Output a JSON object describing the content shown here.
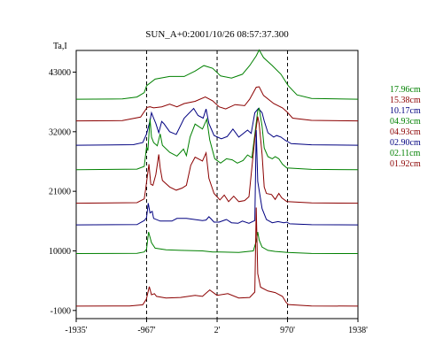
{
  "chart_data": {
    "type": "line",
    "title": "SUN_A+0:2001/10/26 08:57:37.300",
    "ylabel": "Ta,I",
    "xlabel": "",
    "xlim": [
      -1935,
      1938
    ],
    "ylim": [
      -2500,
      47000
    ],
    "y_ticks": [
      {
        "label": "43000",
        "value": 43000
      },
      {
        "label": "32000",
        "value": 32000
      },
      {
        "label": "21000",
        "value": 21000
      },
      {
        "label": "10000",
        "value": 10000
      },
      {
        "label": "-1000",
        "value": -1000
      }
    ],
    "x_ticks": [
      {
        "label": "-1935'",
        "value": -1935
      },
      {
        "label": "-967'",
        "value": -967
      },
      {
        "label": "2'",
        "value": 2
      },
      {
        "label": "970'",
        "value": 970
      },
      {
        "label": "1938'",
        "value": 1938
      }
    ],
    "vlines": [
      -967,
      2,
      970
    ],
    "grid": false,
    "legend_position": "right",
    "series": [
      {
        "name": "17.96cm",
        "color": "#008000",
        "baseline": 38000,
        "points": [
          [
            -1935,
            0
          ],
          [
            -1300,
            50
          ],
          [
            -1100,
            400
          ],
          [
            -1000,
            1200
          ],
          [
            -967,
            2500
          ],
          [
            -850,
            3700
          ],
          [
            -650,
            4200
          ],
          [
            -450,
            4200
          ],
          [
            -300,
            5200
          ],
          [
            -180,
            6200
          ],
          [
            -60,
            5700
          ],
          [
            50,
            4300
          ],
          [
            200,
            3900
          ],
          [
            350,
            4600
          ],
          [
            450,
            6200
          ],
          [
            540,
            8000
          ],
          [
            580,
            9100
          ],
          [
            640,
            7700
          ],
          [
            760,
            6200
          ],
          [
            880,
            4600
          ],
          [
            980,
            2500
          ],
          [
            1100,
            800
          ],
          [
            1300,
            150
          ],
          [
            1938,
            0
          ]
        ]
      },
      {
        "name": "15.38cm",
        "color": "#8b0000",
        "baseline": 34000,
        "points": [
          [
            -1935,
            0
          ],
          [
            -1300,
            50
          ],
          [
            -1050,
            700
          ],
          [
            -960,
            2500
          ],
          [
            -920,
            2600
          ],
          [
            -870,
            2400
          ],
          [
            -760,
            2600
          ],
          [
            -650,
            3100
          ],
          [
            -550,
            2600
          ],
          [
            -450,
            3200
          ],
          [
            -300,
            3600
          ],
          [
            -160,
            4400
          ],
          [
            -60,
            3700
          ],
          [
            30,
            2600
          ],
          [
            120,
            2200
          ],
          [
            250,
            3000
          ],
          [
            380,
            2800
          ],
          [
            450,
            4000
          ],
          [
            540,
            6200
          ],
          [
            580,
            6300
          ],
          [
            640,
            4700
          ],
          [
            780,
            3200
          ],
          [
            900,
            2400
          ],
          [
            960,
            1700
          ],
          [
            1040,
            500
          ],
          [
            1300,
            100
          ],
          [
            1938,
            0
          ]
        ]
      },
      {
        "name": "10.17cm",
        "color": "#000080",
        "baseline": 29500,
        "points": [
          [
            -1935,
            0
          ],
          [
            -1150,
            100
          ],
          [
            -1020,
            500
          ],
          [
            -970,
            2000
          ],
          [
            -920,
            4500
          ],
          [
            -900,
            6000
          ],
          [
            -870,
            5000
          ],
          [
            -840,
            4000
          ],
          [
            -800,
            2300
          ],
          [
            -760,
            4400
          ],
          [
            -730,
            4000
          ],
          [
            -650,
            2500
          ],
          [
            -560,
            2000
          ],
          [
            -450,
            5000
          ],
          [
            -320,
            6800
          ],
          [
            -260,
            5500
          ],
          [
            -190,
            5000
          ],
          [
            -150,
            6700
          ],
          [
            -110,
            4000
          ],
          [
            -40,
            1800
          ],
          [
            60,
            1200
          ],
          [
            140,
            1600
          ],
          [
            220,
            3000
          ],
          [
            300,
            1500
          ],
          [
            420,
            2800
          ],
          [
            470,
            2200
          ],
          [
            520,
            6000
          ],
          [
            570,
            6800
          ],
          [
            620,
            6000
          ],
          [
            650,
            4500
          ],
          [
            700,
            2300
          ],
          [
            780,
            1500
          ],
          [
            820,
            1800
          ],
          [
            880,
            1500
          ],
          [
            940,
            900
          ],
          [
            1020,
            300
          ],
          [
            1300,
            80
          ],
          [
            1938,
            0
          ]
        ]
      },
      {
        "name": "04.93cm",
        "color": "#008000",
        "baseline": 25000,
        "points": [
          [
            -1935,
            0
          ],
          [
            -1100,
            100
          ],
          [
            -1000,
            600
          ],
          [
            -968,
            4200
          ],
          [
            -950,
            3500
          ],
          [
            -920,
            9400
          ],
          [
            -900,
            6000
          ],
          [
            -870,
            5000
          ],
          [
            -820,
            4400
          ],
          [
            -780,
            6600
          ],
          [
            -750,
            4500
          ],
          [
            -650,
            3200
          ],
          [
            -550,
            2500
          ],
          [
            -460,
            3800
          ],
          [
            -420,
            2600
          ],
          [
            -370,
            6000
          ],
          [
            -300,
            8400
          ],
          [
            -200,
            7500
          ],
          [
            -140,
            9300
          ],
          [
            -100,
            5500
          ],
          [
            -30,
            2000
          ],
          [
            50,
            1200
          ],
          [
            130,
            2000
          ],
          [
            210,
            1800
          ],
          [
            280,
            1200
          ],
          [
            360,
            1700
          ],
          [
            420,
            2700
          ],
          [
            480,
            2200
          ],
          [
            520,
            6500
          ],
          [
            560,
            10900
          ],
          [
            580,
            11300
          ],
          [
            620,
            8000
          ],
          [
            650,
            4000
          ],
          [
            700,
            2400
          ],
          [
            760,
            2000
          ],
          [
            800,
            2400
          ],
          [
            850,
            2000
          ],
          [
            900,
            1000
          ],
          [
            960,
            300
          ],
          [
            1300,
            50
          ],
          [
            1938,
            0
          ]
        ]
      },
      {
        "name": "04.93cm",
        "color": "#8b0000",
        "baseline": 18800,
        "points": [
          [
            -1935,
            0
          ],
          [
            -1100,
            100
          ],
          [
            -1000,
            800
          ],
          [
            -980,
            2600
          ],
          [
            -935,
            7200
          ],
          [
            -910,
            3500
          ],
          [
            -880,
            3300
          ],
          [
            -840,
            5300
          ],
          [
            -800,
            9000
          ],
          [
            -780,
            6500
          ],
          [
            -750,
            4200
          ],
          [
            -650,
            3000
          ],
          [
            -560,
            2400
          ],
          [
            -480,
            2800
          ],
          [
            -420,
            3300
          ],
          [
            -360,
            7000
          ],
          [
            -300,
            8500
          ],
          [
            -200,
            7800
          ],
          [
            -150,
            9300
          ],
          [
            -110,
            4600
          ],
          [
            -40,
            1800
          ],
          [
            40,
            600
          ],
          [
            100,
            1500
          ],
          [
            160,
            300
          ],
          [
            230,
            1300
          ],
          [
            300,
            300
          ],
          [
            380,
            500
          ],
          [
            440,
            1200
          ],
          [
            520,
            12000
          ],
          [
            560,
            16000
          ],
          [
            580,
            14700
          ],
          [
            620,
            9000
          ],
          [
            650,
            3000
          ],
          [
            680,
            1800
          ],
          [
            750,
            1600
          ],
          [
            800,
            700
          ],
          [
            850,
            1800
          ],
          [
            890,
            1000
          ],
          [
            960,
            300
          ],
          [
            1300,
            50
          ],
          [
            1938,
            0
          ]
        ]
      },
      {
        "name": "02.90cm",
        "color": "#000080",
        "baseline": 14800,
        "points": [
          [
            -1935,
            0
          ],
          [
            -1100,
            50
          ],
          [
            -1000,
            800
          ],
          [
            -968,
            1300
          ],
          [
            -945,
            4000
          ],
          [
            -920,
            2200
          ],
          [
            -890,
            2500
          ],
          [
            -870,
            1200
          ],
          [
            -780,
            700
          ],
          [
            -620,
            700
          ],
          [
            -550,
            1200
          ],
          [
            -420,
            1200
          ],
          [
            -200,
            800
          ],
          [
            -150,
            900
          ],
          [
            -110,
            1500
          ],
          [
            -80,
            1100
          ],
          [
            -40,
            500
          ],
          [
            30,
            500
          ],
          [
            130,
            1000
          ],
          [
            200,
            400
          ],
          [
            290,
            300
          ],
          [
            350,
            700
          ],
          [
            440,
            300
          ],
          [
            520,
            800
          ],
          [
            540,
            17500
          ],
          [
            560,
            8000
          ],
          [
            620,
            3000
          ],
          [
            680,
            1000
          ],
          [
            760,
            400
          ],
          [
            840,
            600
          ],
          [
            920,
            400
          ],
          [
            960,
            500
          ],
          [
            1000,
            200
          ],
          [
            1300,
            30
          ],
          [
            1938,
            0
          ]
        ]
      },
      {
        "name": "02.11cm",
        "color": "#008000",
        "baseline": 9500,
        "points": [
          [
            -1935,
            0
          ],
          [
            -1100,
            50
          ],
          [
            -1000,
            300
          ],
          [
            -968,
            800
          ],
          [
            -940,
            4000
          ],
          [
            -900,
            2000
          ],
          [
            -850,
            1000
          ],
          [
            -700,
            700
          ],
          [
            -500,
            600
          ],
          [
            -200,
            500
          ],
          [
            -60,
            300
          ],
          [
            40,
            300
          ],
          [
            300,
            200
          ],
          [
            500,
            500
          ],
          [
            540,
            2300
          ],
          [
            560,
            4000
          ],
          [
            580,
            2500
          ],
          [
            620,
            1200
          ],
          [
            700,
            600
          ],
          [
            800,
            400
          ],
          [
            900,
            300
          ],
          [
            970,
            200
          ],
          [
            1300,
            20
          ],
          [
            1938,
            0
          ]
        ]
      },
      {
        "name": "01.92cm",
        "color": "#8b0000",
        "baseline": -200,
        "points": [
          [
            -1935,
            0
          ],
          [
            -1200,
            30
          ],
          [
            -1020,
            250
          ],
          [
            -970,
            1300
          ],
          [
            -930,
            3600
          ],
          [
            -900,
            2100
          ],
          [
            -860,
            2300
          ],
          [
            -830,
            1800
          ],
          [
            -700,
            1500
          ],
          [
            -500,
            1600
          ],
          [
            -300,
            2000
          ],
          [
            -200,
            1800
          ],
          [
            -100,
            3000
          ],
          [
            0,
            2000
          ],
          [
            150,
            2300
          ],
          [
            300,
            1500
          ],
          [
            450,
            1600
          ],
          [
            520,
            2600
          ],
          [
            540,
            18200
          ],
          [
            560,
            6000
          ],
          [
            600,
            3500
          ],
          [
            700,
            2800
          ],
          [
            800,
            2500
          ],
          [
            900,
            1800
          ],
          [
            950,
            700
          ],
          [
            980,
            300
          ],
          [
            1300,
            30
          ],
          [
            1938,
            0
          ]
        ]
      }
    ]
  }
}
